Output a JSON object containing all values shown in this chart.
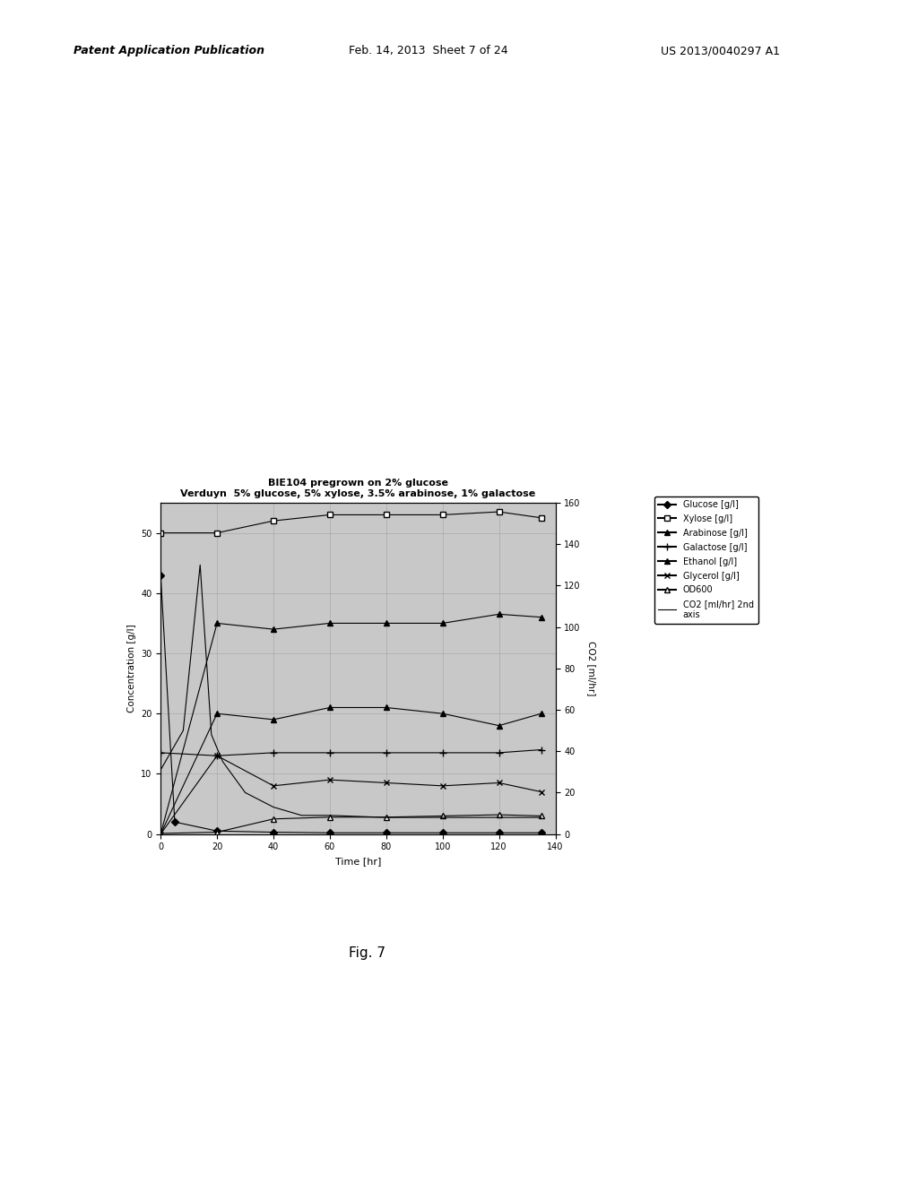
{
  "title_line1": "BIE104 pregrown on 2% glucose",
  "title_line2": "Verduyn  5% glucose, 5% xylose, 3.5% arabinose, 1% galactose",
  "xlabel": "Time [hr]",
  "ylabel_left": "Concentration [g/l]",
  "ylabel_right": "CO2 [ml/hr]",
  "xlim": [
    0,
    140
  ],
  "ylim_left": [
    0,
    55
  ],
  "ylim_right": [
    0,
    160
  ],
  "header_left": "Patent Application Publication",
  "header_mid": "Feb. 14, 2013  Sheet 7 of 24",
  "header_right": "US 2013/0040297 A1",
  "fig_caption": "Fig. 7",
  "xticks": [
    0,
    20,
    40,
    60,
    80,
    100,
    120,
    140
  ],
  "yticks_left": [
    0,
    10,
    20,
    30,
    40,
    50
  ],
  "yticks_right": [
    0,
    20,
    40,
    60,
    80,
    100,
    120,
    140,
    160
  ],
  "glucose_time": [
    0,
    5,
    20,
    40,
    60,
    80,
    100,
    120,
    135
  ],
  "glucose_vals": [
    43,
    2,
    0.5,
    0.3,
    0.2,
    0.2,
    0.2,
    0.2,
    0.2
  ],
  "xylose_time": [
    0,
    20,
    40,
    60,
    80,
    100,
    120,
    135
  ],
  "xylose_vals": [
    50,
    50,
    52,
    53,
    53,
    53,
    53.5,
    52.5
  ],
  "arabinose_time": [
    0,
    20,
    40,
    60,
    80,
    100,
    120,
    135
  ],
  "arabinose_vals": [
    0,
    35,
    34,
    35,
    35,
    35,
    36.5,
    36
  ],
  "galactose_time": [
    0,
    20,
    40,
    60,
    80,
    100,
    120,
    135
  ],
  "galactose_vals": [
    13.5,
    13,
    13.5,
    13.5,
    13.5,
    13.5,
    13.5,
    14
  ],
  "ethanol_time": [
    0,
    20,
    40,
    60,
    80,
    100,
    120,
    135
  ],
  "ethanol_vals": [
    0,
    20,
    19,
    21,
    21,
    20,
    18,
    20
  ],
  "glycerol_time": [
    0,
    20,
    40,
    60,
    80,
    100,
    120,
    135
  ],
  "glycerol_vals": [
    0,
    13,
    8,
    9,
    8.5,
    8,
    8.5,
    7
  ],
  "od600_time": [
    0,
    20,
    40,
    60,
    80,
    100,
    120,
    135
  ],
  "od600_vals": [
    0.1,
    0.3,
    2.5,
    2.8,
    2.8,
    3.0,
    3.2,
    3.0
  ],
  "co2_time": [
    0,
    8,
    14,
    18,
    22,
    30,
    40,
    50,
    60,
    80,
    100,
    120,
    135
  ],
  "co2_vals": [
    31,
    50,
    130,
    48,
    35,
    20,
    13,
    9,
    9,
    8,
    8,
    8,
    8
  ]
}
